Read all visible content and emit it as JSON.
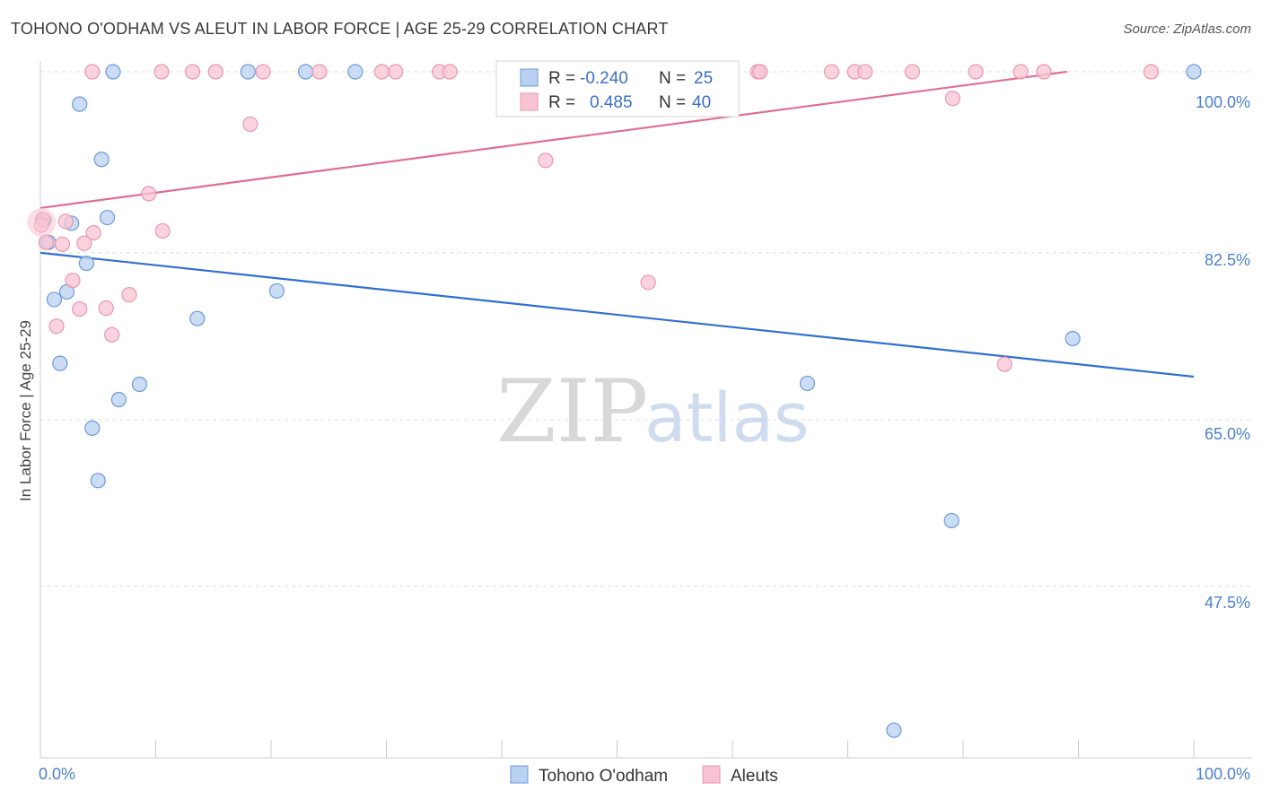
{
  "title": "TOHONO O'ODHAM VS ALEUT IN LABOR FORCE | AGE 25-29 CORRELATION CHART",
  "source": "Source: ZipAtlas.com",
  "watermark": {
    "zip": "ZIP",
    "atlas": "atlas"
  },
  "colors": {
    "blue_fill": "#b8d1f0",
    "blue_stroke": "#6c9ad8",
    "blue_line": "#2f6fd0",
    "pink_fill": "#f8c4d3",
    "pink_stroke": "#e896b0",
    "pink_line": "#e06c95",
    "axis_text": "#4a7fd0",
    "grid": "#dddddd"
  },
  "legend": {
    "rows": [
      {
        "r_label": "R =",
        "r_value": "-0.240",
        "n_label": "N =",
        "n_value": "25"
      },
      {
        "r_label": "R =",
        "r_value": "0.485",
        "n_label": "N =",
        "n_value": "40"
      }
    ]
  },
  "chart_data": {
    "type": "scatter",
    "title": "TOHONO O'ODHAM VS ALEUT IN LABOR FORCE | AGE 25-29 CORRELATION CHART",
    "xlabel": "",
    "ylabel": "In Labor Force | Age 25-29",
    "xlim": [
      0,
      100
    ],
    "ylim": [
      29.5,
      101.5
    ],
    "x_tick_labels": [
      "0.0%",
      "100.0%"
    ],
    "y_ticks": [
      100,
      82.5,
      65,
      47.5
    ],
    "y_tick_labels": [
      "100.0%",
      "82.5%",
      "65.0%",
      "47.5%"
    ],
    "grid": true,
    "legend_position": "top-center",
    "series": [
      {
        "name": "Tohono O'odham",
        "color": "blue",
        "points": [
          [
            6.3,
            101.5
          ],
          [
            18,
            101.5
          ],
          [
            23,
            101.5
          ],
          [
            27.3,
            101.5
          ],
          [
            100,
            101.5
          ],
          [
            3.4,
            98.1
          ],
          [
            5.3,
            92.3
          ],
          [
            5.8,
            86.2
          ],
          [
            2.7,
            85.6
          ],
          [
            0.7,
            83.6
          ],
          [
            4.0,
            81.4
          ],
          [
            1.2,
            77.6
          ],
          [
            2.3,
            78.4
          ],
          [
            20.5,
            78.5
          ],
          [
            13.6,
            75.6
          ],
          [
            1.7,
            70.9
          ],
          [
            8.6,
            68.7
          ],
          [
            6.8,
            67.1
          ],
          [
            66.5,
            68.8
          ],
          [
            89.5,
            73.5
          ],
          [
            4.5,
            64.1
          ],
          [
            5.0,
            58.6
          ],
          [
            79,
            54.4
          ],
          [
            74,
            32.4
          ],
          [
            0.3,
            85.9
          ]
        ],
        "trend": {
          "x": [
            0,
            100
          ],
          "y": [
            82.5,
            69.5
          ]
        }
      },
      {
        "name": "Aleuts",
        "color": "pink",
        "points": [
          [
            4.5,
            101.5
          ],
          [
            10.5,
            101.5
          ],
          [
            13.2,
            101.5
          ],
          [
            15.2,
            101.5
          ],
          [
            19.3,
            101.5
          ],
          [
            24.2,
            101.5
          ],
          [
            29.6,
            101.5
          ],
          [
            30.8,
            101.5
          ],
          [
            34.6,
            101.5
          ],
          [
            35.5,
            101.5
          ],
          [
            62.2,
            101.5
          ],
          [
            62.4,
            101.5
          ],
          [
            68.6,
            101.5
          ],
          [
            70.6,
            101.5
          ],
          [
            71.5,
            101.5
          ],
          [
            75.6,
            101.5
          ],
          [
            81.1,
            101.5
          ],
          [
            85.0,
            101.5
          ],
          [
            87.0,
            101.5
          ],
          [
            96.3,
            101.5
          ],
          [
            18.2,
            96.0
          ],
          [
            79.1,
            98.7
          ],
          [
            43.8,
            92.2
          ],
          [
            9.4,
            88.7
          ],
          [
            10.6,
            84.8
          ],
          [
            4.6,
            84.6
          ],
          [
            2.2,
            85.8
          ],
          [
            3.8,
            83.5
          ],
          [
            1.9,
            83.4
          ],
          [
            0.5,
            83.6
          ],
          [
            2.8,
            79.6
          ],
          [
            7.7,
            78.1
          ],
          [
            5.7,
            76.7
          ],
          [
            3.4,
            76.6
          ],
          [
            1.4,
            74.8
          ],
          [
            6.2,
            73.9
          ],
          [
            52.7,
            79.4
          ],
          [
            83.6,
            70.8
          ],
          [
            0.2,
            86.0
          ],
          [
            0.1,
            85.4
          ]
        ],
        "trend": {
          "x": [
            0,
            89
          ],
          "y": [
            87.2,
            101.5
          ]
        }
      }
    ]
  },
  "bottom_legend": [
    "Tohono O'odham",
    "Aleuts"
  ]
}
